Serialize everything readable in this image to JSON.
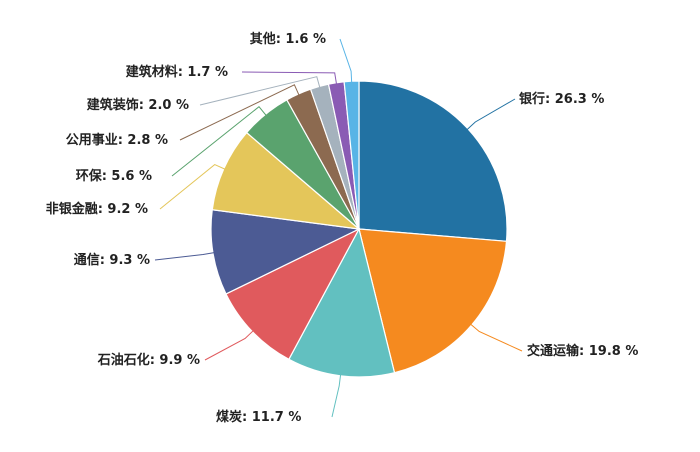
{
  "chart_data": {
    "type": "pie",
    "start_angle_deg": 0,
    "direction": "clockwise",
    "slices": [
      {
        "name": "银行",
        "value": 26.3,
        "label": "银行: 26.3 %",
        "color": "#2272a3"
      },
      {
        "name": "交通运输",
        "value": 19.8,
        "label": "交通运输: 19.8 %",
        "color": "#f58a1f"
      },
      {
        "name": "煤炭",
        "value": 11.7,
        "label": "煤炭: 11.7 %",
        "color": "#62c0c0"
      },
      {
        "name": "石油石化",
        "value": 9.9,
        "label": "石油石化: 9.9 %",
        "color": "#e05a5d"
      },
      {
        "name": "通信",
        "value": 9.3,
        "label": "通信: 9.3 %",
        "color": "#4c5b94"
      },
      {
        "name": "非银金融",
        "value": 9.2,
        "label": "非银金融: 9.2 %",
        "color": "#e4c65a"
      },
      {
        "name": "环保",
        "value": 5.6,
        "label": "环保: 5.6 %",
        "color": "#5aa36e"
      },
      {
        "name": "公用事业",
        "value": 2.8,
        "label": "公用事业: 2.8 %",
        "color": "#8c6a50"
      },
      {
        "name": "建筑装饰",
        "value": 2.0,
        "label": "建筑装饰: 2.0 %",
        "color": "#a5b2bd"
      },
      {
        "name": "建筑材料",
        "value": 1.7,
        "label": "建筑材料: 1.7 %",
        "color": "#8a5bb4"
      },
      {
        "name": "其他",
        "value": 1.6,
        "label": "其他: 1.6 %",
        "color": "#58b4e6"
      }
    ]
  }
}
